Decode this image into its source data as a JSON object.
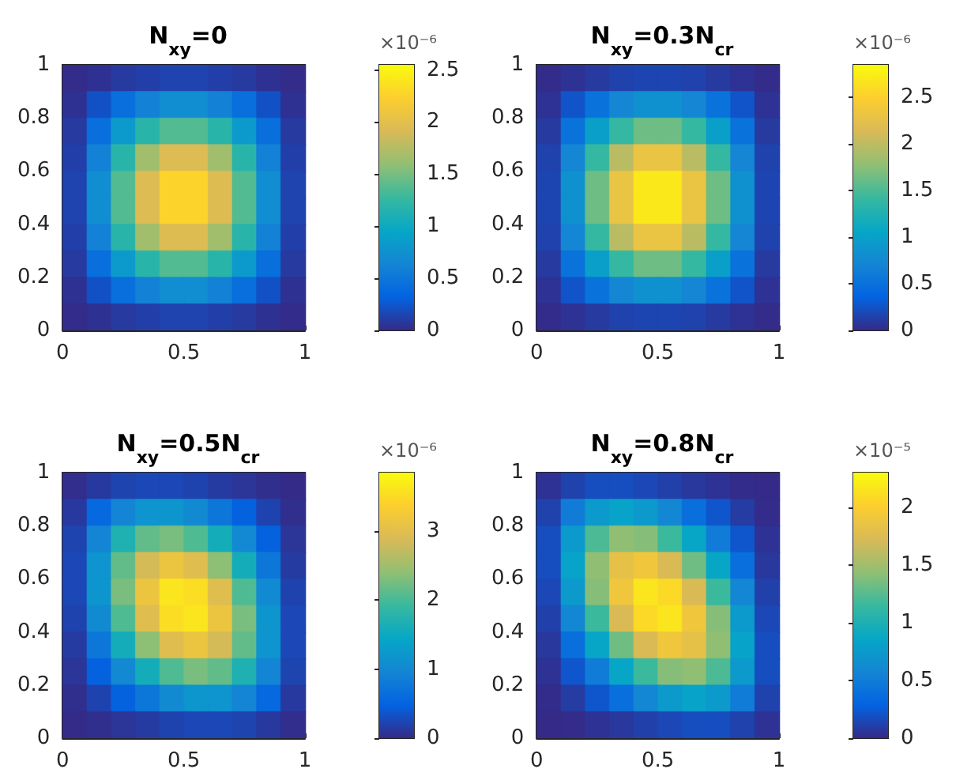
{
  "chart_data": [
    {
      "type": "heatmap",
      "title": "N$_{xy}$=0",
      "x": [
        0.05,
        0.15,
        0.25,
        0.35,
        0.45,
        0.55,
        0.65,
        0.75,
        0.85,
        0.95
      ],
      "y": [
        0.95,
        0.85,
        0.75,
        0.65,
        0.55,
        0.45,
        0.35,
        0.25,
        0.15,
        0.05
      ],
      "xlim": [
        0,
        1
      ],
      "xticks": [
        0,
        0.5,
        1
      ],
      "ylim": [
        0,
        1
      ],
      "yticks": [
        0,
        0.2,
        0.4,
        0.6,
        0.8,
        1
      ],
      "clim": [
        0,
        2.55
      ],
      "cticks": [
        0,
        0.5,
        1,
        1.5,
        2,
        2.5
      ],
      "clabel": "×10⁻⁶",
      "cells": [
        [
          0.01,
          0.04,
          0.09,
          0.12,
          0.14,
          0.14,
          0.12,
          0.09,
          0.04,
          0.01
        ],
        [
          0.04,
          0.22,
          0.43,
          0.6,
          0.71,
          0.71,
          0.6,
          0.43,
          0.22,
          0.04
        ],
        [
          0.09,
          0.43,
          0.83,
          1.18,
          1.37,
          1.37,
          1.18,
          0.83,
          0.43,
          0.09
        ],
        [
          0.12,
          0.6,
          1.18,
          1.66,
          1.94,
          1.94,
          1.66,
          1.18,
          0.6,
          0.12
        ],
        [
          0.14,
          0.71,
          1.37,
          1.94,
          2.27,
          2.27,
          1.94,
          1.37,
          0.71,
          0.14
        ],
        [
          0.14,
          0.71,
          1.37,
          1.94,
          2.27,
          2.27,
          1.94,
          1.37,
          0.71,
          0.14
        ],
        [
          0.12,
          0.6,
          1.18,
          1.66,
          1.94,
          1.94,
          1.66,
          1.18,
          0.6,
          0.12
        ],
        [
          0.09,
          0.43,
          0.83,
          1.18,
          1.37,
          1.37,
          1.18,
          0.83,
          0.43,
          0.09
        ],
        [
          0.04,
          0.22,
          0.43,
          0.6,
          0.71,
          0.71,
          0.6,
          0.43,
          0.22,
          0.04
        ],
        [
          0.01,
          0.04,
          0.09,
          0.12,
          0.14,
          0.14,
          0.12,
          0.09,
          0.04,
          0.01
        ]
      ]
    },
    {
      "type": "heatmap",
      "title": "N$_{xy}$=0.3N$_{cr}$",
      "x": [
        0.05,
        0.15,
        0.25,
        0.35,
        0.45,
        0.55,
        0.65,
        0.75,
        0.85,
        0.95
      ],
      "y": [
        0.95,
        0.85,
        0.75,
        0.65,
        0.55,
        0.45,
        0.35,
        0.25,
        0.15,
        0.05
      ],
      "xlim": [
        0,
        1
      ],
      "xticks": [
        0,
        0.5,
        1
      ],
      "ylim": [
        0,
        1
      ],
      "yticks": [
        0,
        0.2,
        0.4,
        0.6,
        0.8,
        1
      ],
      "clim": [
        0,
        2.85
      ],
      "cticks": [
        0,
        0.5,
        1,
        1.5,
        2,
        2.5
      ],
      "clabel": "×10⁻⁶",
      "cells": [
        [
          0.01,
          0.05,
          0.1,
          0.15,
          0.17,
          0.17,
          0.15,
          0.1,
          0.05,
          0.01
        ],
        [
          0.05,
          0.26,
          0.51,
          0.72,
          0.84,
          0.84,
          0.72,
          0.51,
          0.26,
          0.05
        ],
        [
          0.1,
          0.51,
          0.99,
          1.4,
          1.64,
          1.64,
          1.4,
          0.99,
          0.51,
          0.1
        ],
        [
          0.15,
          0.72,
          1.4,
          1.98,
          2.31,
          2.31,
          1.98,
          1.4,
          0.72,
          0.15
        ],
        [
          0.17,
          0.84,
          1.64,
          2.31,
          2.7,
          2.7,
          2.31,
          1.64,
          0.84,
          0.17
        ],
        [
          0.17,
          0.84,
          1.64,
          2.31,
          2.7,
          2.7,
          2.31,
          1.64,
          0.84,
          0.17
        ],
        [
          0.15,
          0.72,
          1.4,
          1.98,
          2.31,
          2.31,
          1.98,
          1.4,
          0.72,
          0.15
        ],
        [
          0.1,
          0.51,
          0.99,
          1.4,
          1.64,
          1.64,
          1.4,
          0.99,
          0.51,
          0.1
        ],
        [
          0.05,
          0.26,
          0.51,
          0.72,
          0.84,
          0.84,
          0.72,
          0.51,
          0.26,
          0.05
        ],
        [
          0.01,
          0.05,
          0.1,
          0.15,
          0.17,
          0.17,
          0.15,
          0.1,
          0.05,
          0.01
        ]
      ]
    },
    {
      "type": "heatmap",
      "title": "N$_{xy}$=0.5N$_{cr}$",
      "x": [
        0.05,
        0.15,
        0.25,
        0.35,
        0.45,
        0.55,
        0.65,
        0.75,
        0.85,
        0.95
      ],
      "y": [
        0.95,
        0.85,
        0.75,
        0.65,
        0.55,
        0.45,
        0.35,
        0.25,
        0.15,
        0.05
      ],
      "xlim": [
        0,
        1
      ],
      "xticks": [
        0,
        0.5,
        1
      ],
      "ylim": [
        0,
        1
      ],
      "yticks": [
        0,
        0.2,
        0.4,
        0.6,
        0.8,
        1
      ],
      "clim": [
        0,
        3.85
      ],
      "cticks": [
        0,
        1,
        2,
        3
      ],
      "clabel": "×10⁻⁶",
      "cells": [
        [
          0.03,
          0.13,
          0.22,
          0.25,
          0.25,
          0.21,
          0.14,
          0.09,
          0.04,
          0.01
        ],
        [
          0.13,
          0.57,
          0.95,
          1.17,
          1.19,
          1.03,
          0.77,
          0.47,
          0.21,
          0.04
        ],
        [
          0.22,
          0.95,
          1.68,
          2.15,
          2.27,
          2.05,
          1.59,
          1.02,
          0.47,
          0.09
        ],
        [
          0.25,
          1.17,
          2.15,
          2.86,
          3.15,
          2.97,
          2.38,
          1.59,
          0.77,
          0.14
        ],
        [
          0.25,
          1.19,
          2.27,
          3.15,
          3.61,
          3.53,
          2.97,
          2.05,
          1.03,
          0.21
        ],
        [
          0.21,
          1.03,
          2.05,
          2.97,
          3.53,
          3.61,
          3.15,
          2.27,
          1.19,
          0.25
        ],
        [
          0.14,
          0.77,
          1.59,
          2.38,
          2.97,
          3.15,
          2.86,
          2.15,
          1.17,
          0.25
        ],
        [
          0.09,
          0.47,
          1.02,
          1.59,
          2.05,
          2.27,
          2.15,
          1.68,
          0.95,
          0.22
        ],
        [
          0.04,
          0.21,
          0.47,
          0.77,
          1.03,
          1.19,
          1.17,
          0.95,
          0.57,
          0.13
        ],
        [
          0.01,
          0.04,
          0.09,
          0.14,
          0.21,
          0.25,
          0.25,
          0.22,
          0.13,
          0.03
        ]
      ]
    },
    {
      "type": "heatmap",
      "title": "N$_{xy}$=0.8N$_{cr}$",
      "x": [
        0.05,
        0.15,
        0.25,
        0.35,
        0.45,
        0.55,
        0.65,
        0.75,
        0.85,
        0.95
      ],
      "y": [
        0.95,
        0.85,
        0.75,
        0.65,
        0.55,
        0.45,
        0.35,
        0.25,
        0.15,
        0.05
      ],
      "xlim": [
        0,
        1
      ],
      "xticks": [
        0,
        0.5,
        1
      ],
      "ylim": [
        0,
        1
      ],
      "yticks": [
        0,
        0.2,
        0.4,
        0.6,
        0.8,
        1
      ],
      "clim": [
        0,
        2.3
      ],
      "cticks": [
        0,
        0.5,
        1,
        1.5,
        2
      ],
      "clabel": "×10⁻⁵",
      "cells": [
        [
          0.04,
          0.12,
          0.18,
          0.18,
          0.15,
          0.11,
          0.07,
          0.04,
          0.01,
          0
        ],
        [
          0.12,
          0.5,
          0.74,
          0.83,
          0.75,
          0.59,
          0.39,
          0.22,
          0.09,
          0.01
        ],
        [
          0.18,
          0.74,
          1.21,
          1.43,
          1.4,
          1.16,
          0.85,
          0.5,
          0.22,
          0.04
        ],
        [
          0.18,
          0.83,
          1.43,
          1.83,
          1.91,
          1.73,
          1.33,
          0.85,
          0.39,
          0.07
        ],
        [
          0.15,
          0.75,
          1.4,
          1.91,
          2.16,
          2.08,
          1.73,
          1.16,
          0.59,
          0.11
        ],
        [
          0.11,
          0.59,
          1.16,
          1.73,
          2.08,
          2.16,
          1.91,
          1.4,
          0.75,
          0.15
        ],
        [
          0.07,
          0.39,
          0.85,
          1.33,
          1.73,
          1.91,
          1.83,
          1.43,
          0.83,
          0.18
        ],
        [
          0.04,
          0.22,
          0.5,
          0.85,
          1.16,
          1.4,
          1.43,
          1.21,
          0.74,
          0.18
        ],
        [
          0.01,
          0.09,
          0.22,
          0.39,
          0.59,
          0.75,
          0.83,
          0.74,
          0.5,
          0.12
        ],
        [
          0,
          0.01,
          0.04,
          0.07,
          0.11,
          0.15,
          0.18,
          0.18,
          0.12,
          0.04
        ]
      ]
    }
  ]
}
